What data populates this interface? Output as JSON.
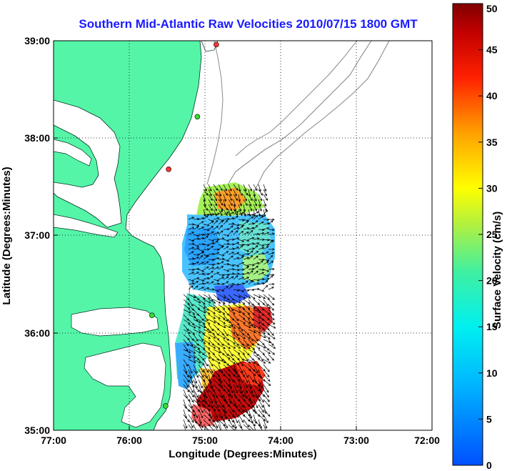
{
  "title": "Southern Mid-Atlantic Raw Velocities 2010/07/15 1800 GMT",
  "x_axis": {
    "label": "Longitude (Degrees:Minutes)",
    "ticks": [
      "77:00",
      "76:00",
      "75:00",
      "74:00",
      "73:00",
      "72:00"
    ]
  },
  "y_axis": {
    "label": "Latitude (Degrees:Minutes)",
    "ticks": [
      "39:00",
      "38:00",
      "37:00",
      "36:00",
      "35:00"
    ]
  },
  "colorbar": {
    "label": "Surface Velocity (cm/s)",
    "ticks": [
      "0",
      "5",
      "10",
      "15",
      "20",
      "25",
      "30",
      "35",
      "40",
      "45",
      "50"
    ],
    "min": 0,
    "max": 50
  },
  "colors": {
    "land": "#55f5a8",
    "title": "#1a1aff",
    "bathymetry": "#8a8a8a",
    "grid": "#000000"
  },
  "stations": [
    {
      "lon": -74.85,
      "lat": 38.96,
      "color": "#ff3333"
    },
    {
      "lon": -75.1,
      "lat": 38.22,
      "color": "#33dd33"
    },
    {
      "lon": -75.48,
      "lat": 37.68,
      "color": "#ff3333"
    },
    {
      "lon": -75.7,
      "lat": 36.18,
      "color": "#33dd33"
    },
    {
      "lon": -75.52,
      "lat": 35.25,
      "color": "#33dd33"
    }
  ]
}
